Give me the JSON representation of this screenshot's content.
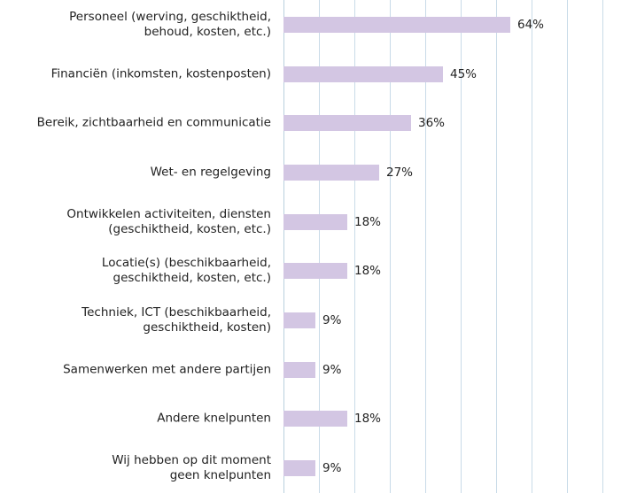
{
  "chart_data": {
    "type": "bar",
    "orientation": "horizontal",
    "categories": [
      "Personeel (werving, geschiktheid,\nbehoud, kosten, etc.)",
      "Financiën (inkomsten, kostenposten)",
      "Bereik, zichtbaarheid en communicatie",
      "Wet- en regelgeving",
      "Ontwikkelen activiteiten, diensten\n(geschiktheid, kosten, etc.)",
      "Locatie(s) (beschikbaarheid,\ngeschiktheid, kosten, etc.)",
      "Techniek, ICT (beschikbaarheid,\ngeschiktheid, kosten)",
      "Samenwerken met andere partijen",
      "Andere knelpunten",
      "Wij hebben op dit moment\ngeen knelpunten"
    ],
    "values": [
      64,
      45,
      36,
      27,
      18,
      18,
      9,
      9,
      18,
      9
    ],
    "value_labels": [
      "64%",
      "45%",
      "36%",
      "27%",
      "18%",
      "18%",
      "9%",
      "9%",
      "18%",
      "9%"
    ],
    "color": "#d3c6e3",
    "xlim": [
      0,
      97.5
    ],
    "xticks": [
      10,
      20,
      30,
      40,
      50,
      60,
      70,
      80,
      90
    ],
    "grid": true
  }
}
